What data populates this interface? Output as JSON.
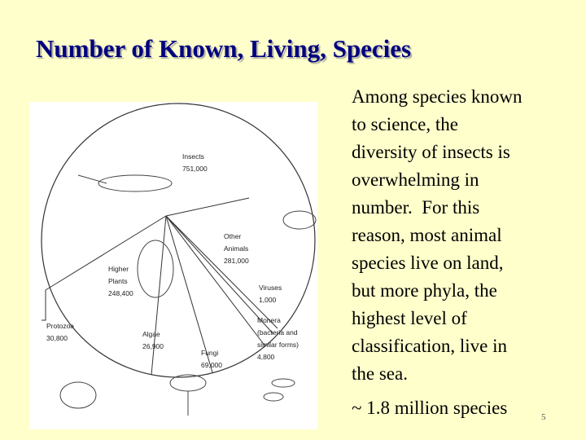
{
  "header": {
    "title": "Number of Known, Living, Species"
  },
  "figure": {
    "labels": [
      {
        "name": "Insects",
        "value": "751,000"
      },
      {
        "name": "Other Animals",
        "value": "281,000"
      },
      {
        "name": "Higher Plants",
        "value": "248,400"
      },
      {
        "name": "Viruses",
        "value": "1,000"
      },
      {
        "name": "Protozoa",
        "value": "30,800"
      },
      {
        "name": "Algae",
        "value": "26,900"
      },
      {
        "name": "Monera (bacteria and similar forms)",
        "value": "4,800"
      },
      {
        "name": "Fungi",
        "value": "69,000"
      }
    ]
  },
  "body": {
    "lines": [
      "Among species known",
      "to science, the",
      "diversity of insects is",
      "overwhelming in",
      "number.  For this",
      "reason, most animal",
      "species live on land,",
      "but more phyla, the",
      "highest level of",
      "classification, live in",
      "the sea."
    ],
    "summary": "~ 1.8 million species",
    "slide_number": "5"
  }
}
